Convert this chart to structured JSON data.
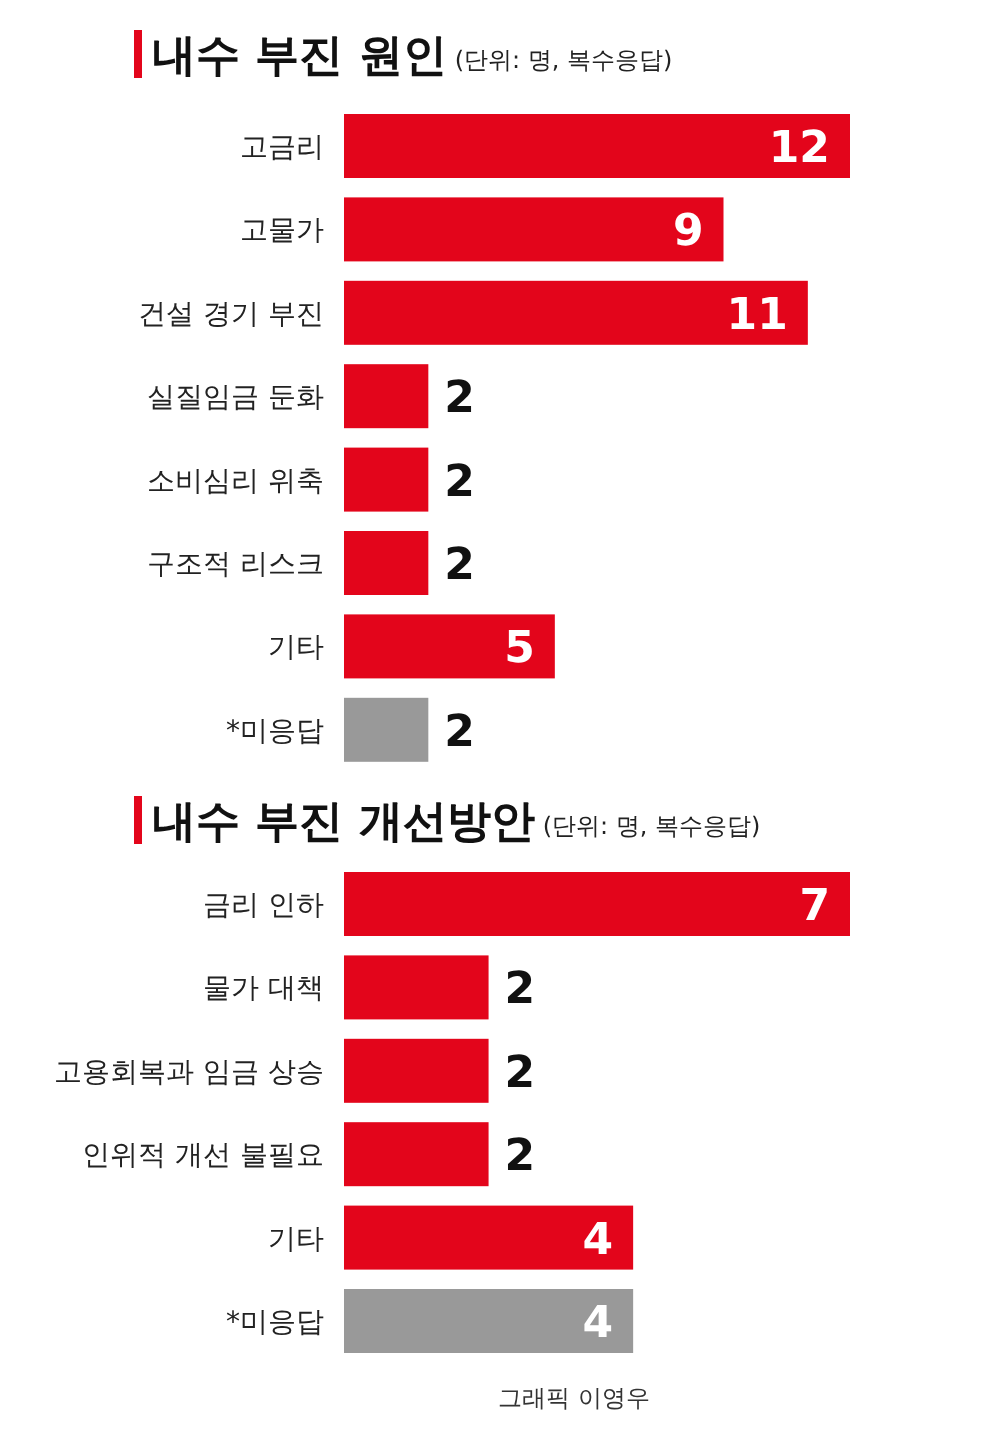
{
  "chart_data": [
    {
      "type": "bar",
      "orientation": "horizontal",
      "title": "내수 부진 원인",
      "subtitle": "(단위: 명, 복수응답)",
      "categories": [
        "고금리",
        "고물가",
        "건설 경기 부진",
        "실질임금 둔화",
        "소비심리 위축",
        "구조적 리스크",
        "기타",
        "*미응답"
      ],
      "values": [
        12,
        9,
        11,
        2,
        2,
        2,
        5,
        2
      ],
      "colors": [
        "#e3051b",
        "#e3051b",
        "#e3051b",
        "#e3051b",
        "#e3051b",
        "#e3051b",
        "#e3051b",
        "#999999"
      ],
      "data_labels": true,
      "tick_labels": "y"
    },
    {
      "type": "bar",
      "orientation": "horizontal",
      "title": "내수 부진 개선방안",
      "subtitle": "(단위: 명, 복수응답)",
      "categories": [
        "금리 인하",
        "물가 대책",
        "고용회복과 임금 상승",
        "인위적 개선 불필요",
        "기타",
        "*미응답"
      ],
      "values": [
        7,
        2,
        2,
        2,
        4,
        4
      ],
      "colors": [
        "#e3051b",
        "#e3051b",
        "#e3051b",
        "#e3051b",
        "#e3051b",
        "#999999"
      ],
      "data_labels": true,
      "tick_labels": "y",
      "annotations": [
        "그래픽 이영우"
      ]
    }
  ]
}
